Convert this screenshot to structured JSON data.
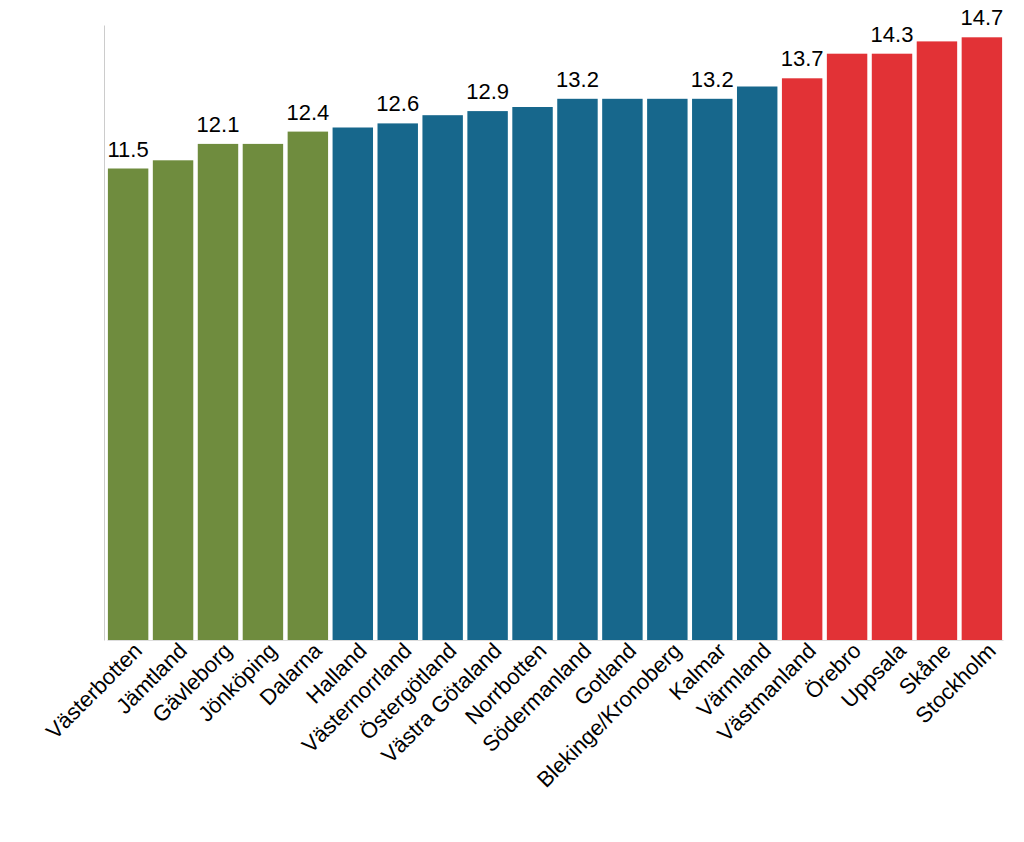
{
  "chart_data": {
    "type": "bar",
    "categories": [
      "Västerbotten",
      "Jämtland",
      "Gävleborg",
      "Jönköping",
      "Dalarna",
      "Halland",
      "Västernorrland",
      "Östergötland",
      "Västra Götaland",
      "Norrbotten",
      "Södermanland",
      "Gotland",
      "Blekinge/Kronoberg",
      "Kalmar",
      "Värmland",
      "Västmanland",
      "Örebro",
      "Uppsala",
      "Skåne",
      "Stockholm"
    ],
    "values": [
      11.5,
      11.7,
      12.1,
      12.1,
      12.4,
      12.5,
      12.6,
      12.8,
      12.9,
      13.0,
      13.2,
      13.2,
      13.2,
      13.2,
      13.5,
      13.7,
      14.3,
      14.3,
      14.6,
      14.7
    ],
    "value_labels": [
      "11.5",
      null,
      "12.1",
      null,
      "12.4",
      null,
      "12.6",
      null,
      "12.9",
      null,
      "13.2",
      null,
      null,
      "13.2",
      null,
      "13.7",
      null,
      "14.3",
      null,
      "14.7"
    ],
    "colors": [
      "#6f8c3e",
      "#6f8c3e",
      "#6f8c3e",
      "#6f8c3e",
      "#6f8c3e",
      "#17678c",
      "#17678c",
      "#17678c",
      "#17678c",
      "#17678c",
      "#17678c",
      "#17678c",
      "#17678c",
      "#17678c",
      "#17678c",
      "#e23236",
      "#e23236",
      "#e23236",
      "#e23236",
      "#e23236"
    ],
    "ylim": [
      0,
      15
    ],
    "yticks": [],
    "tick_labels": "x"
  }
}
